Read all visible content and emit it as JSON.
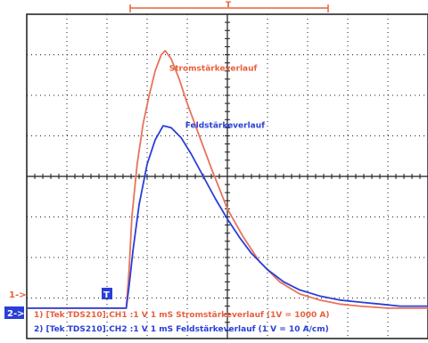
{
  "screen": {
    "background": "#ffffff",
    "grid_color": "#1a1a1a",
    "divisions_x": 10,
    "divisions_y": 8
  },
  "trigger_bar": {
    "marker_symbol": "T",
    "color": "#e8603c"
  },
  "channel_markers": {
    "ch1_label": "1->",
    "ch2_label": "2->",
    "trigger_level_label": "T"
  },
  "chart_data": {
    "type": "line",
    "x_unit": "div",
    "y_unit": "div",
    "xlim": [
      0,
      10
    ],
    "ylim": [
      -4,
      4
    ],
    "grid": true,
    "series": [
      {
        "name": "Stromstärkeverlauf",
        "color": "#e8735a",
        "x": [
          0,
          1,
          2,
          2.3,
          2.48,
          2.55,
          2.62,
          2.75,
          2.9,
          3.05,
          3.2,
          3.35,
          3.45,
          3.6,
          3.8,
          4.0,
          4.3,
          4.6,
          5.0,
          5.4,
          5.8,
          6.3,
          6.8,
          7.3,
          7.8,
          8.3,
          9.0,
          10.0
        ],
        "y": [
          -3.25,
          -3.25,
          -3.25,
          -3.25,
          -3.25,
          -2.3,
          -1.0,
          0.3,
          1.3,
          2.0,
          2.6,
          3.0,
          3.1,
          2.9,
          2.4,
          1.8,
          1.0,
          0.2,
          -0.8,
          -1.5,
          -2.1,
          -2.6,
          -2.9,
          -3.05,
          -3.15,
          -3.2,
          -3.25,
          -3.25
        ]
      },
      {
        "name": "Feldstärkeverlauf",
        "color": "#2a3fd6",
        "x": [
          0,
          1,
          2,
          2.3,
          2.48,
          2.55,
          2.65,
          2.8,
          3.0,
          3.2,
          3.4,
          3.6,
          3.85,
          4.1,
          4.4,
          4.7,
          5.0,
          5.3,
          5.6,
          6.0,
          6.4,
          6.8,
          7.3,
          7.8,
          8.3,
          8.8,
          9.3,
          10.0
        ],
        "y": [
          -3.25,
          -3.25,
          -3.25,
          -3.25,
          -3.25,
          -2.7,
          -1.8,
          -0.7,
          0.3,
          0.9,
          1.25,
          1.2,
          0.95,
          0.55,
          0.0,
          -0.55,
          -1.05,
          -1.5,
          -1.9,
          -2.3,
          -2.6,
          -2.8,
          -2.95,
          -3.05,
          -3.1,
          -3.15,
          -3.2,
          -3.2
        ]
      }
    ],
    "annotations": [
      {
        "text": "Stromstärkeverlauf",
        "x": 3.55,
        "y": 2.6,
        "color": "#e8603c"
      },
      {
        "text": "Feldstärkeverlauf",
        "x": 3.95,
        "y": 1.2,
        "color": "#2a3fd6"
      }
    ]
  },
  "readout": {
    "line1": "1) [Tek TDS210].CH1 :1  V    1 mS Stromstärkeverlauf (1V = 1000 A)",
    "line2": "2) [Tek TDS210].CH2 :1  V    1 mS Feldstärkeverlauf (1 V = 10 A/cm)",
    "line1_color": "#e8603c",
    "line2_color": "#2a3fd6"
  }
}
